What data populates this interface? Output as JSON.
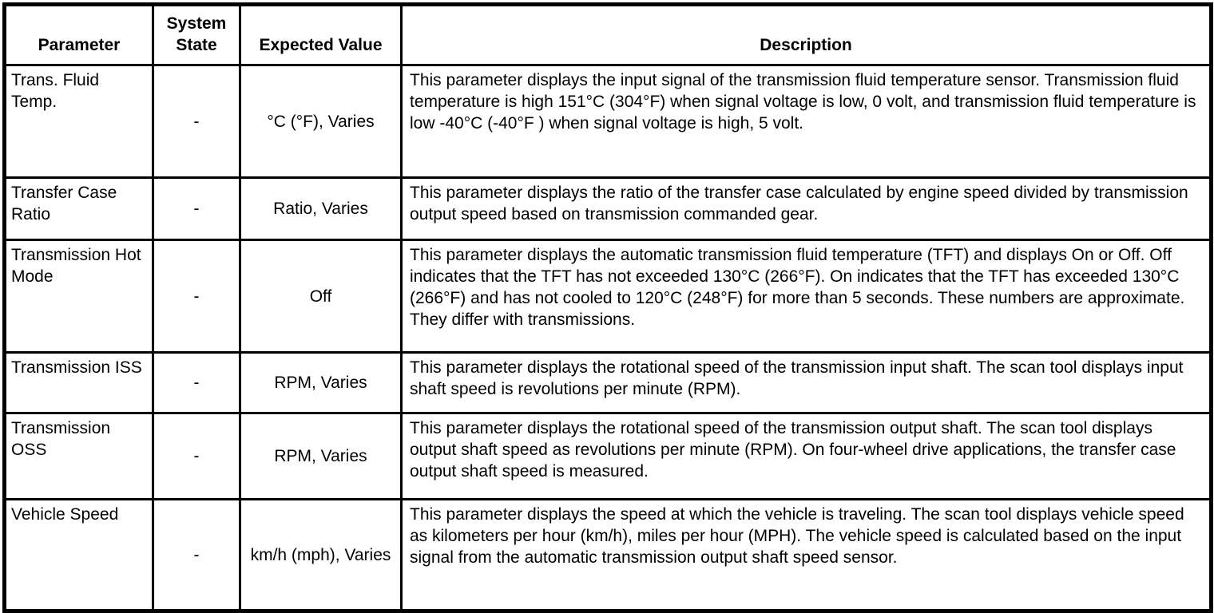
{
  "header": {
    "parameter": "Parameter",
    "system_state": "System State",
    "expected_value": "Expected Value",
    "description": "Description"
  },
  "rows": [
    {
      "parameter": "Trans. Fluid Temp.",
      "system_state": "-",
      "expected_value": "°C (°F), Varies",
      "description": "This parameter displays the input signal of the transmission fluid temperature sensor. Transmission fluid temperature is high 151°C (304°F) when signal voltage is low, 0 volt, and transmission fluid temperature is low -40°C (-40°F ) when signal voltage is high, 5 volt."
    },
    {
      "parameter": "Transfer Case Ratio",
      "system_state": "-",
      "expected_value": "Ratio, Varies",
      "description": "This parameter displays the ratio of the transfer case calculated by engine speed divided by transmission output speed based on transmission commanded gear."
    },
    {
      "parameter": "Transmission Hot Mode",
      "system_state": "-",
      "expected_value": "Off",
      "description": "This parameter displays the automatic transmission fluid temperature (TFT) and displays On or Off. Off indicates that the TFT has not exceeded 130°C (266°F). On indicates that the TFT has exceeded 130°C (266°F) and has not cooled to 120°C (248°F) for more than 5 seconds. These numbers are approximate. They differ with transmissions."
    },
    {
      "parameter": "Transmission ISS",
      "system_state": "-",
      "expected_value": "RPM, Varies",
      "description": "This parameter displays the rotational speed of the transmission input shaft. The scan tool displays input shaft speed is revolutions per minute (RPM)."
    },
    {
      "parameter": "Transmission OSS",
      "system_state": "-",
      "expected_value": "RPM, Varies",
      "description": "This parameter displays the rotational speed of the transmission output shaft. The scan tool displays output shaft speed as revolutions per minute (RPM). On four-wheel drive applications, the transfer case output shaft speed is measured."
    },
    {
      "parameter": "Vehicle Speed",
      "system_state": "-",
      "expected_value": "km/h (mph), Varies",
      "description": "This parameter displays the speed at which the vehicle is traveling. The scan tool displays vehicle speed as kilometers per hour (km/h), miles per hour (MPH). The vehicle speed is calculated based on the input signal from the automatic transmission output shaft speed sensor."
    }
  ]
}
